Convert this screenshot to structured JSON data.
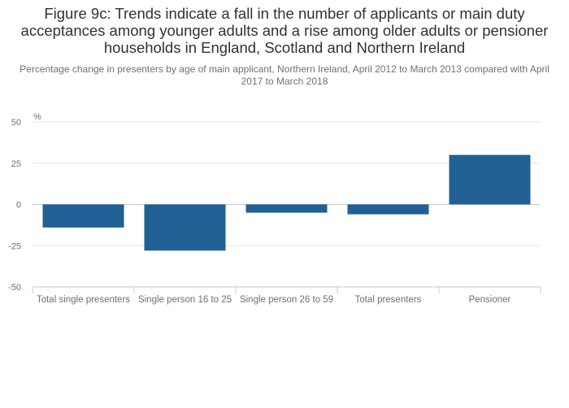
{
  "chart_data": {
    "type": "bar",
    "title": "Figure 9c: Trends indicate a fall in the number of applicants or main duty acceptances among younger adults and a rise among older adults or pensioner households in England, Scotland and Northern Ireland",
    "subtitle": "Percentage change in presenters by age of main applicant, Northern Ireland, April 2012 to March 2013 compared with April 2017 to March 2018",
    "ylabel": "%",
    "xlabel": "",
    "categories": [
      "Total single presenters",
      "Single person 16 to 25",
      "Single person 26 to 59",
      "Total presenters",
      "Pensioner"
    ],
    "values": [
      -14,
      -28,
      -5,
      -6,
      30
    ],
    "ylim": [
      -50,
      50
    ],
    "yticks": [
      50,
      25,
      0,
      -25,
      -50
    ],
    "grid": true,
    "legend": "none",
    "bar_color": "#206095",
    "grid_color": "#e6e6e6",
    "zero_line_color": "#c8c8c8",
    "axis_color": "#c8c8c8"
  }
}
